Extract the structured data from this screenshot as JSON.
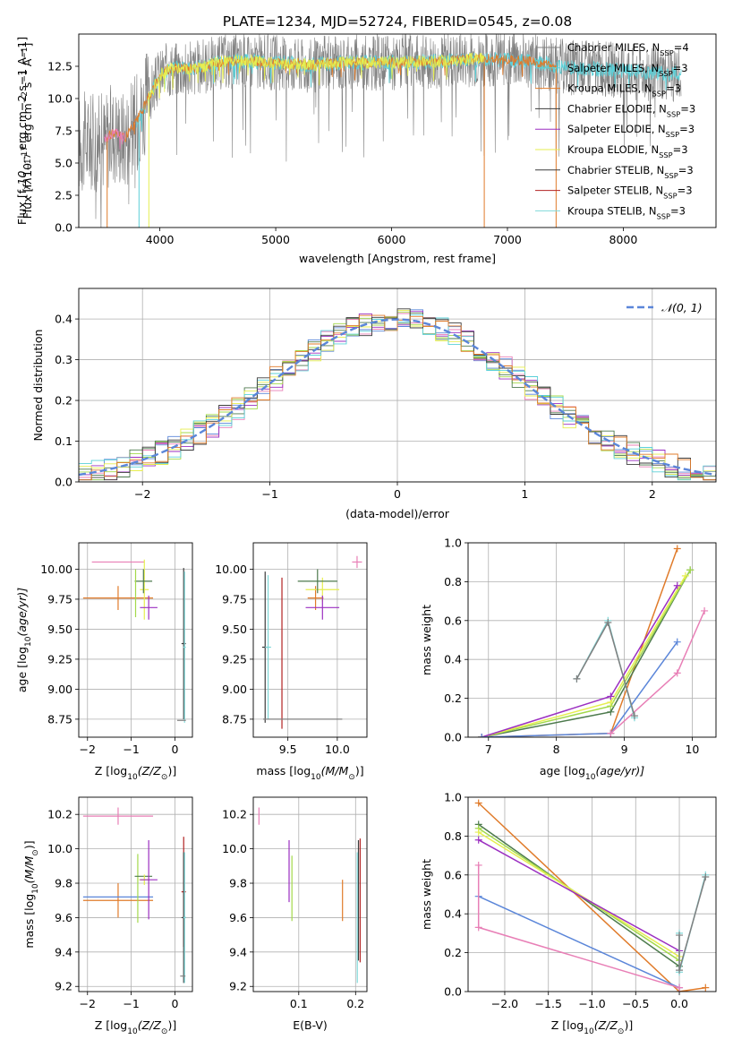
{
  "figure_title": "PLATE=1234, MJD=52724, FIBERID=0545, z=0.08",
  "colors": {
    "Chabrier MILES": "#808080",
    "Salpeter MILES": "#5bd0d8",
    "Kroupa MILES": "#e07b2a",
    "Chabrier ELODIE": "#3c3c3c",
    "Salpeter ELODIE": "#9b2fc1",
    "Kroupa ELODIE": "#e6ee4f",
    "Chabrier STELIB": "#4d7a4d",
    "Salpeter STELIB": "#b22222",
    "Kroupa STELIB": "#7fd8d8",
    "blue": "#5b86d9",
    "pink": "#e87fb6",
    "green": "#5d8c5d",
    "lime": "#a3d94b"
  },
  "chart_data": [
    {
      "id": "spectrum",
      "type": "line",
      "title": "",
      "xlabel": "wavelength [Angstrom, rest frame]",
      "ylabel_parts": [
        "Flux [f",
        "λ",
        "10",
        "−17",
        " erg cm",
        "−2",
        " s",
        "−1",
        " A",
        "−1",
        "]"
      ],
      "xlim": [
        3300,
        8800
      ],
      "ylim": [
        0,
        15
      ],
      "xticks": [
        4000,
        5000,
        6000,
        7000,
        8000
      ],
      "yticks": [
        0.0,
        2.5,
        5.0,
        7.5,
        10.0,
        12.5
      ],
      "ytick_labels": [
        "0.0",
        "2.5",
        "5.0",
        "7.5",
        "10.0",
        "12.5"
      ],
      "legend_position": "right",
      "legend": [
        {
          "name": "Chabrier MILES, N",
          "sub": "SSP",
          "tail": "=4",
          "color": "#808080"
        },
        {
          "name": "Salpeter MILES, N",
          "sub": "SSP",
          "tail": "=3",
          "color": "#5bd0d8"
        },
        {
          "name": "Kroupa MILES, N",
          "sub": "SSP",
          "tail": "=3",
          "color": "#e07b2a"
        },
        {
          "name": "Chabrier ELODIE, N",
          "sub": "SSP",
          "tail": "=3",
          "color": "#3c3c3c"
        },
        {
          "name": "Salpeter ELODIE, N",
          "sub": "SSP",
          "tail": "=3",
          "color": "#9b2fc1"
        },
        {
          "name": "Kroupa ELODIE, N",
          "sub": "SSP",
          "tail": "=3",
          "color": "#e6ee4f"
        },
        {
          "name": "Chabrier STELIB, N",
          "sub": "SSP",
          "tail": "=3",
          "color": "#3c3c3c"
        },
        {
          "name": "Salpeter STELIB, N",
          "sub": "SSP",
          "tail": "=3",
          "color": "#b22222"
        },
        {
          "name": "Kroupa STELIB, N",
          "sub": "SSP",
          "tail": "=3",
          "color": "#7fd8d8"
        }
      ],
      "continuum": [
        [
          3500,
          6.6
        ],
        [
          3600,
          7.4
        ],
        [
          3700,
          7.0
        ],
        [
          3800,
          8.2
        ],
        [
          3900,
          10.0
        ],
        [
          4000,
          11.8
        ],
        [
          4100,
          12.4
        ],
        [
          4300,
          12.3
        ],
        [
          4500,
          12.8
        ],
        [
          4700,
          12.9
        ],
        [
          5000,
          12.8
        ],
        [
          5300,
          12.6
        ],
        [
          5600,
          12.8
        ],
        [
          6000,
          12.8
        ],
        [
          6400,
          12.9
        ],
        [
          6800,
          13.1
        ],
        [
          7200,
          12.9
        ],
        [
          7500,
          12.4
        ],
        [
          7800,
          12.3
        ],
        [
          8200,
          12.0
        ],
        [
          8500,
          11.9
        ]
      ],
      "series": [
        {
          "name": "Chabrier MILES",
          "color": "#808080",
          "range": [
            3300,
            8500
          ],
          "noise": 2.2
        },
        {
          "name": "Salpeter MILES",
          "color": "#5bd0d8",
          "range": [
            3800,
            8500
          ],
          "noise": 0.6
        },
        {
          "name": "Kroupa MILES",
          "color": "#e07b2a",
          "range": [
            3540,
            7420
          ],
          "noise": 0.4
        },
        {
          "name": "Kroupa ELODIE",
          "color": "#e6ee4f",
          "range": [
            3900,
            6800
          ],
          "noise": 0.5
        },
        {
          "name": "Salpeter ELODIE",
          "color": "#e87fb6",
          "range": [
            3520,
            3700
          ],
          "noise": 0.4
        }
      ]
    },
    {
      "id": "residuals",
      "type": "step",
      "xlabel": "(data-model)/error",
      "ylabel": "Normed distribution",
      "xlim": [
        -2.5,
        2.5
      ],
      "ylim": [
        0,
        0.475
      ],
      "xticks": [
        -2,
        -1,
        0,
        1,
        2
      ],
      "xtick_labels": [
        "−2",
        "−1",
        "0",
        "1",
        "2"
      ],
      "yticks": [
        0.0,
        0.1,
        0.2,
        0.3,
        0.4
      ],
      "ytick_labels": [
        "0.0",
        "0.1",
        "0.2",
        "0.3",
        "0.4"
      ],
      "grid": true,
      "legend_position": "top-right",
      "gaussian_label": "𝒩(0, 1)",
      "gaussian_color": "#5b86d9",
      "bin_width": 0.1,
      "series_colors": [
        "#5b86d9",
        "#e87fb6",
        "#9b2fc1",
        "#a3d94b",
        "#4d7a4d",
        "#e6ee4f",
        "#5bd0d8",
        "#3c3c3c",
        "#e07b2a"
      ]
    },
    {
      "id": "age_Z",
      "type": "errorbar",
      "xlabel_parts": [
        "Z [log",
        "10",
        "(Z/Z",
        "⊙",
        ")]"
      ],
      "ylabel_parts": [
        "age  [log",
        "10",
        "(age/yr)]"
      ],
      "xlim": [
        -2.2,
        0.4
      ],
      "ylim": [
        8.6,
        10.22
      ],
      "xticks": [
        -2,
        -1,
        0
      ],
      "xtick_labels": [
        "−2",
        "−1",
        "0"
      ],
      "yticks": [
        8.75,
        9.0,
        9.25,
        9.5,
        9.75,
        10.0
      ],
      "ytick_labels": [
        "8.75",
        "9.00",
        "9.25",
        "9.50",
        "9.75",
        "10.00"
      ],
      "points": [
        {
          "x": -1.3,
          "xerr": 0.6,
          "y": 10.06,
          "yerr": 0.0,
          "color": "#e87fb6"
        },
        {
          "x": -1.3,
          "xerr": 0.8,
          "y": 9.76,
          "yerr": 0.1,
          "color": "#e07b2a"
        },
        {
          "x": -0.7,
          "xerr": 0.1,
          "y": 9.83,
          "yerr": 0.25,
          "color": "#e6ee4f"
        },
        {
          "x": -0.72,
          "xerr": 0.2,
          "y": 9.9,
          "yerr": 0.1,
          "color": "#4d7a4d"
        },
        {
          "x": -0.6,
          "xerr": 0.2,
          "y": 9.68,
          "yerr": 0.1,
          "color": "#9b2fc1"
        },
        {
          "x": -0.9,
          "xerr": 0.0,
          "y": 9.8,
          "yerr": 0.2,
          "color": "#a3d94b"
        },
        {
          "x": 0.2,
          "xerr": 0.05,
          "y": 9.38,
          "yerr": 0.63,
          "color": "#3c3c3c"
        },
        {
          "x": 0.22,
          "xerr": 0.03,
          "y": 9.35,
          "yerr": 0.63,
          "color": "#7fd8d8"
        },
        {
          "x": 0.15,
          "xerr": 0.1,
          "y": 8.74,
          "yerr": 0.0,
          "color": "#808080"
        }
      ]
    },
    {
      "id": "age_mass",
      "type": "errorbar",
      "xlabel_parts": [
        "mass [log",
        "10",
        "(M/M",
        "⊙",
        ")]"
      ],
      "ylabel_parts": [],
      "xlim": [
        9.15,
        10.3
      ],
      "ylim": [
        8.6,
        10.22
      ],
      "xticks": [
        9.5,
        10.0
      ],
      "xtick_labels": [
        "9.5",
        "10.0"
      ],
      "yticks": [
        8.75,
        9.0,
        9.25,
        9.5,
        9.75,
        10.0
      ],
      "ytick_labels": [
        "8.75",
        "9.00",
        "9.25",
        "9.50",
        "9.75",
        "10.00"
      ],
      "points": [
        {
          "x": 10.2,
          "xerr": 0.05,
          "y": 10.06,
          "yerr": 0.05,
          "color": "#e87fb6"
        },
        {
          "x": 9.78,
          "xerr": 0.08,
          "y": 9.76,
          "yerr": 0.1,
          "color": "#e07b2a"
        },
        {
          "x": 9.85,
          "xerr": 0.17,
          "y": 9.83,
          "yerr": 0.1,
          "color": "#e6ee4f"
        },
        {
          "x": 9.8,
          "xerr": 0.2,
          "y": 9.9,
          "yerr": 0.1,
          "color": "#4d7a4d"
        },
        {
          "x": 9.85,
          "xerr": 0.17,
          "y": 9.68,
          "yerr": 0.1,
          "color": "#9b2fc1"
        },
        {
          "x": 9.27,
          "xerr": 0.03,
          "y": 9.35,
          "yerr": 0.63,
          "color": "#3c3c3c"
        },
        {
          "x": 9.3,
          "xerr": 0.03,
          "y": 9.35,
          "yerr": 0.6,
          "color": "#7fd8d8"
        },
        {
          "x": 9.44,
          "xerr": 0.0,
          "y": 9.3,
          "yerr": 0.63,
          "color": "#b22222"
        },
        {
          "x": 9.65,
          "xerr": 0.4,
          "y": 8.75,
          "yerr": 0.0,
          "color": "#808080"
        }
      ]
    },
    {
      "id": "weight_age",
      "type": "line",
      "xlabel_parts": [
        "age  [log",
        "10",
        "(age/yr)]"
      ],
      "ylabel": "mass weight",
      "xlim": [
        6.7,
        10.35
      ],
      "ylim": [
        0,
        1
      ],
      "xticks": [
        7,
        8,
        9,
        10
      ],
      "xtick_labels": [
        "7",
        "8",
        "9",
        "10"
      ],
      "yticks": [
        0.0,
        0.2,
        0.4,
        0.6,
        0.8,
        1.0
      ],
      "ytick_labels": [
        "0.0",
        "0.2",
        "0.4",
        "0.6",
        "0.8",
        "1.0"
      ],
      "series": [
        {
          "color": "#e07b2a",
          "x": [
            6.9,
            8.8,
            9.78
          ],
          "y": [
            0.0,
            0.02,
            0.97
          ]
        },
        {
          "color": "#4d7a4d",
          "x": [
            6.9,
            8.8,
            9.97
          ],
          "y": [
            0.0,
            0.13,
            0.86
          ]
        },
        {
          "color": "#a3d94b",
          "x": [
            6.9,
            8.8,
            9.97
          ],
          "y": [
            0.0,
            0.16,
            0.86
          ]
        },
        {
          "color": "#e6ee4f",
          "x": [
            6.9,
            8.8,
            9.9
          ],
          "y": [
            0.0,
            0.18,
            0.83
          ]
        },
        {
          "color": "#9b2fc1",
          "x": [
            6.9,
            8.8,
            9.78
          ],
          "y": [
            0.0,
            0.21,
            0.78
          ]
        },
        {
          "color": "#5b86d9",
          "x": [
            6.9,
            8.8,
            9.78
          ],
          "y": [
            0.0,
            0.02,
            0.49
          ]
        },
        {
          "color": "#e87fb6",
          "x": [
            8.8,
            9.78,
            10.18
          ],
          "y": [
            0.02,
            0.33,
            0.65
          ]
        },
        {
          "color": "#7fd8d8",
          "x": [
            8.3,
            8.76,
            9.15
          ],
          "y": [
            0.3,
            0.6,
            0.1
          ]
        },
        {
          "color": "#808080",
          "x": [
            8.3,
            8.76,
            9.15
          ],
          "y": [
            0.3,
            0.59,
            0.11
          ]
        }
      ]
    },
    {
      "id": "mass_Z",
      "type": "errorbar",
      "xlabel_parts": [
        "Z [log",
        "10",
        "(Z/Z",
        "⊙",
        ")]"
      ],
      "ylabel_parts": [
        "mass [log",
        "10",
        "(M/M",
        "⊙",
        ")]"
      ],
      "xlim": [
        -2.2,
        0.4
      ],
      "ylim": [
        9.17,
        10.3
      ],
      "xticks": [
        -2,
        -1,
        0
      ],
      "xtick_labels": [
        "−2",
        "−1",
        "0"
      ],
      "yticks": [
        9.2,
        9.4,
        9.6,
        9.8,
        10.0,
        10.2
      ],
      "ytick_labels": [
        "9.2",
        "9.4",
        "9.6",
        "9.8",
        "10.0",
        "10.2"
      ],
      "points": [
        {
          "x": -1.3,
          "xerr": 0.8,
          "y": 10.19,
          "yerr": 0.05,
          "color": "#e87fb6"
        },
        {
          "x": -1.3,
          "xerr": 0.8,
          "y": 9.7,
          "yerr": 0.1,
          "color": "#e07b2a"
        },
        {
          "x": -1.3,
          "xerr": 0.8,
          "y": 9.72,
          "yerr": 0.0,
          "color": "#5b86d9"
        },
        {
          "x": -0.85,
          "xerr": 0.0,
          "y": 9.77,
          "yerr": 0.2,
          "color": "#a3d94b"
        },
        {
          "x": -0.72,
          "xerr": 0.2,
          "y": 9.84,
          "yerr": 0.0,
          "color": "#4d7a4d"
        },
        {
          "x": -0.7,
          "xerr": 0.12,
          "y": 9.82,
          "yerr": 0.03,
          "color": "#e6ee4f"
        },
        {
          "x": -0.6,
          "xerr": 0.2,
          "y": 9.82,
          "yerr": 0.23,
          "color": "#9b2fc1"
        },
        {
          "x": 0.2,
          "xerr": 0.05,
          "y": 9.75,
          "yerr": 0.32,
          "color": "#b22222"
        },
        {
          "x": 0.2,
          "xerr": 0.05,
          "y": 9.6,
          "yerr": 0.38,
          "color": "#3c3c3c"
        },
        {
          "x": 0.22,
          "xerr": 0.03,
          "y": 9.6,
          "yerr": 0.38,
          "color": "#7fd8d8"
        },
        {
          "x": 0.18,
          "xerr": 0.06,
          "y": 9.26,
          "yerr": 0.0,
          "color": "#808080"
        }
      ]
    },
    {
      "id": "mass_ebv",
      "type": "errorbar",
      "xlabel": "E(B-V)",
      "xlim": [
        0.02,
        0.22
      ],
      "ylim": [
        9.17,
        10.3
      ],
      "xticks": [
        0.1,
        0.2
      ],
      "xtick_labels": [
        "0.1",
        "0.2"
      ],
      "yticks": [
        9.2,
        9.4,
        9.6,
        9.8,
        10.0,
        10.2
      ],
      "ytick_labels": [
        "9.2",
        "9.4",
        "9.6",
        "9.8",
        "10.0",
        "10.2"
      ],
      "points": [
        {
          "x": 0.03,
          "xerr": 0.0,
          "y": 10.19,
          "yerr": 0.05,
          "color": "#e87fb6"
        },
        {
          "x": 0.083,
          "xerr": 0.0,
          "y": 9.87,
          "yerr": 0.18,
          "color": "#9b2fc1"
        },
        {
          "x": 0.088,
          "xerr": 0.0,
          "y": 9.77,
          "yerr": 0.19,
          "color": "#a3d94b"
        },
        {
          "x": 0.177,
          "xerr": 0.0,
          "y": 9.7,
          "yerr": 0.12,
          "color": "#e07b2a"
        },
        {
          "x": 0.205,
          "xerr": 0.0,
          "y": 9.7,
          "yerr": 0.35,
          "color": "#3c3c3c"
        },
        {
          "x": 0.208,
          "xerr": 0.0,
          "y": 9.7,
          "yerr": 0.36,
          "color": "#b22222"
        },
        {
          "x": 0.203,
          "xerr": 0.0,
          "y": 9.6,
          "yerr": 0.38,
          "color": "#7fd8d8"
        }
      ]
    },
    {
      "id": "weight_Z",
      "type": "line",
      "xlabel_parts": [
        "Z [log",
        "10",
        "(Z/Z",
        "⊙",
        ")]"
      ],
      "ylabel": "mass weight",
      "xlim": [
        -2.42,
        0.42
      ],
      "ylim": [
        0,
        1
      ],
      "xticks": [
        -2.0,
        -1.5,
        -1.0,
        -0.5,
        0.0
      ],
      "xtick_labels": [
        "−2.0",
        "−1.5",
        "−1.0",
        "−0.5",
        "0.0"
      ],
      "yticks": [
        0.0,
        0.2,
        0.4,
        0.6,
        0.8,
        1.0
      ],
      "ytick_labels": [
        "0.0",
        "0.2",
        "0.4",
        "0.6",
        "0.8",
        "1.0"
      ],
      "series": [
        {
          "color": "#e07b2a",
          "x": [
            -2.3,
            0.0,
            0.3
          ],
          "y": [
            0.97,
            0.0,
            0.02
          ]
        },
        {
          "color": "#4d7a4d",
          "x": [
            -2.3,
            0.0
          ],
          "y": [
            0.86,
            0.13
          ]
        },
        {
          "color": "#a3d94b",
          "x": [
            -2.3,
            0.0
          ],
          "y": [
            0.84,
            0.16
          ]
        },
        {
          "color": "#e6ee4f",
          "x": [
            -2.3,
            0.0
          ],
          "y": [
            0.82,
            0.18
          ]
        },
        {
          "color": "#9b2fc1",
          "x": [
            -2.3,
            0.0
          ],
          "y": [
            0.78,
            0.21
          ]
        },
        {
          "color": "#5b86d9",
          "x": [
            -2.3,
            0.0
          ],
          "y": [
            0.49,
            0.02
          ]
        },
        {
          "color": "#e87fb6",
          "x": [
            -2.3,
            -2.3,
            0.0
          ],
          "y": [
            0.65,
            0.33,
            0.02
          ]
        },
        {
          "color": "#7fd8d8",
          "x": [
            0.0,
            0.0,
            0.3
          ],
          "y": [
            0.3,
            0.1,
            0.6
          ]
        },
        {
          "color": "#808080",
          "x": [
            0.0,
            0.0,
            0.3
          ],
          "y": [
            0.29,
            0.11,
            0.59
          ]
        }
      ]
    }
  ]
}
